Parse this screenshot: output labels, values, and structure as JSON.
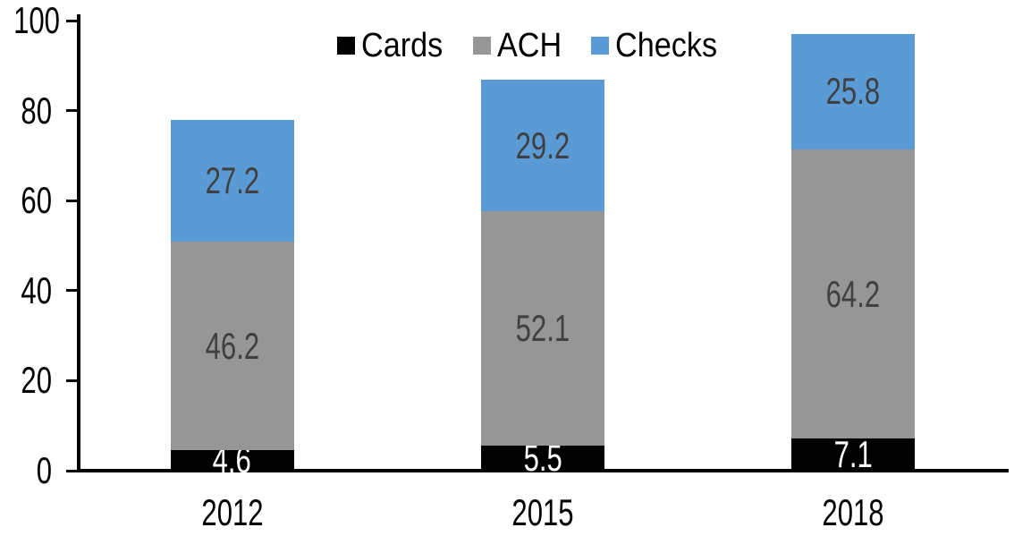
{
  "chart_data": {
    "type": "bar",
    "stacked": true,
    "title": "",
    "xlabel": "",
    "ylabel": "",
    "categories": [
      "2012",
      "2015",
      "2018"
    ],
    "series": [
      {
        "name": "Cards",
        "color": "#000000",
        "label_color": "#ffffff",
        "values": [
          4.6,
          5.5,
          7.1
        ]
      },
      {
        "name": "ACH",
        "color": "#969696",
        "label_color": "#404040",
        "values": [
          46.2,
          52.1,
          64.2
        ]
      },
      {
        "name": "Checks",
        "color": "#5B9BD5",
        "label_color": "#404040",
        "values": [
          27.2,
          29.2,
          25.8
        ]
      }
    ],
    "totals": [
      78.0,
      86.8,
      97.1
    ],
    "ylim": [
      0,
      100
    ],
    "yticks": [
      0,
      20,
      40,
      60,
      80,
      100
    ],
    "grid": false,
    "data_labels": true,
    "legend_position": "top-center",
    "axis_color": "#000000",
    "background_color": "#ffffff"
  }
}
